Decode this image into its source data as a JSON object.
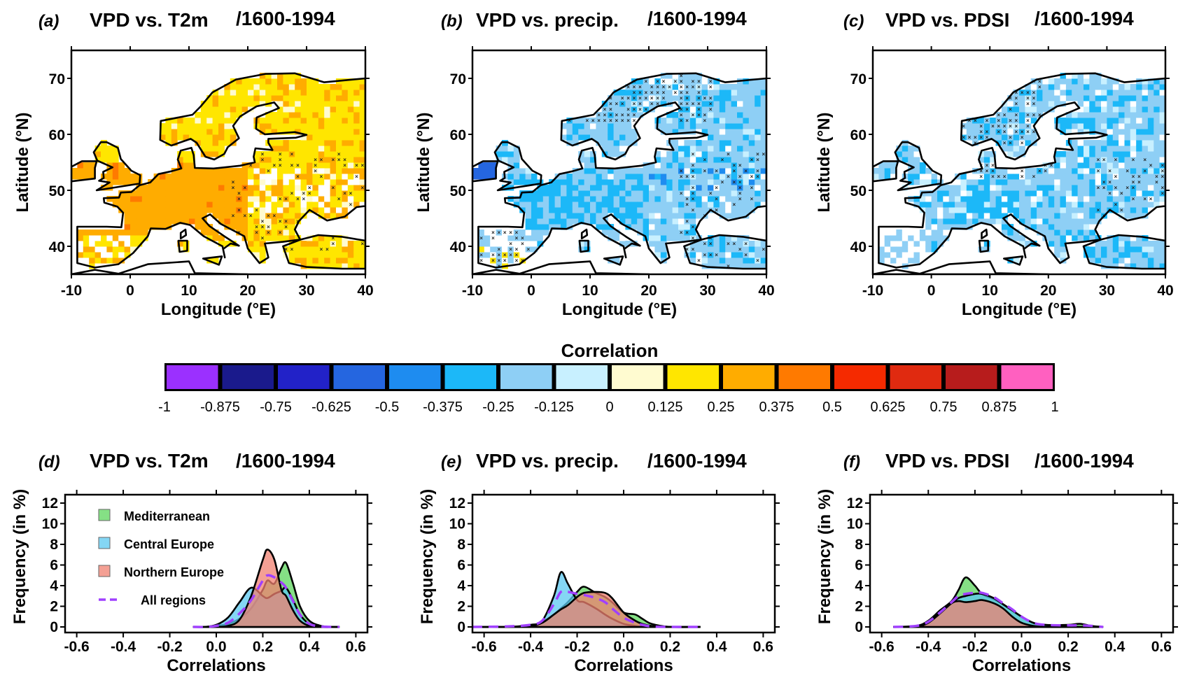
{
  "figure": {
    "colorbar": {
      "title": "Correlation",
      "ticks": [
        "-1",
        "-0.875",
        "-0.75",
        "-0.625",
        "-0.5",
        "-0.375",
        "-0.25",
        "-0.125",
        "0",
        "0.125",
        "0.25",
        "0.375",
        "0.5",
        "0.625",
        "0.75",
        "0.875",
        "1"
      ],
      "colors": [
        "#9b30ff",
        "#1a1a8c",
        "#2222c8",
        "#2566e0",
        "#1e8cf0",
        "#1cb8f8",
        "#8ecff5",
        "#c8f0ff",
        "#fffbd0",
        "#ffe600",
        "#ffac00",
        "#ff7a00",
        "#f52a00",
        "#e02a10",
        "#b71c1c",
        "#ff60c0"
      ]
    }
  },
  "chart_data": [
    {
      "type": "heatmap",
      "panel": "(a)",
      "title": "VPD vs. T2m",
      "period": "/1600-1994",
      "xlabel": "Longitude (°E)",
      "ylabel": "Latitude (°N)",
      "xlim": [
        -10,
        40
      ],
      "ylim": [
        35,
        75
      ],
      "xticks": [
        "-10",
        "0",
        "10",
        "20",
        "30",
        "40"
      ],
      "yticks": [
        "40",
        "50",
        "60",
        "70"
      ],
      "dominant_values": "positive 0.25–0.5 (yellow/orange); west and central Europe ~0.375, east ~0.25; hatched non-significant cells in eastern Europe"
    },
    {
      "type": "heatmap",
      "panel": "(b)",
      "title": "VPD vs. precip.",
      "period": "/1600-1994",
      "xlabel": "Longitude (°E)",
      "ylabel": "Latitude (°N)",
      "xlim": [
        -10,
        40
      ],
      "ylim": [
        35,
        75
      ],
      "xticks": [
        "-10",
        "0",
        "10",
        "20",
        "30",
        "40"
      ],
      "yticks": [
        "40",
        "50",
        "60",
        "70"
      ],
      "dominant_values": "negative -0.125 to -0.5 (blue); hatched cells in Scandinavia, Iberia and eastern Europe"
    },
    {
      "type": "heatmap",
      "panel": "(c)",
      "title": "VPD vs. PDSI",
      "period": "/1600-1994",
      "xlabel": "Longitude (°E)",
      "ylabel": "Latitude (°N)",
      "xlim": [
        -10,
        40
      ],
      "ylim": [
        35,
        75
      ],
      "xticks": [
        "-10",
        "0",
        "10",
        "20",
        "30",
        "40"
      ],
      "yticks": [
        "40",
        "50",
        "60",
        "70"
      ],
      "dominant_values": "negative -0.125 to -0.375 (blue); hatched cells in Scandinavia, central and eastern Europe"
    },
    {
      "type": "area",
      "panel": "(d)",
      "title": "VPD vs. T2m",
      "period": "/1600-1994",
      "xlabel": "Correlations",
      "ylabel": "Frequency (in %)",
      "xlim": [
        -0.65,
        0.65
      ],
      "ylim": [
        0,
        12
      ],
      "xticks": [
        "-0.6",
        "-0.4",
        "-0.2",
        "0.0",
        "0.2",
        "0.4",
        "0.6"
      ],
      "yticks": [
        "0",
        "2",
        "4",
        "6",
        "8",
        "10",
        "12"
      ],
      "legend": [
        "Mediterranean",
        "Central Europe",
        "Northern Europe",
        "All regions"
      ],
      "legend_position": "top-left",
      "x": [
        -0.1,
        -0.05,
        0.0,
        0.05,
        0.1,
        0.15,
        0.2,
        0.22,
        0.25,
        0.28,
        0.3,
        0.33,
        0.36,
        0.4,
        0.45,
        0.5,
        0.53
      ],
      "series": [
        {
          "name": "Mediterranean",
          "color": "#5cd65c",
          "values": [
            0,
            0,
            0.1,
            0.3,
            0.8,
            1.8,
            3.6,
            4.5,
            4.2,
            5.7,
            6.2,
            4.2,
            2.0,
            0.6,
            0.1,
            0,
            0
          ]
        },
        {
          "name": "Central Europe",
          "color": "#5bc8f0",
          "values": [
            0,
            0,
            0.2,
            0.9,
            2.4,
            3.8,
            3.0,
            2.8,
            3.2,
            3.5,
            3.8,
            2.6,
            1.2,
            0.3,
            0,
            0,
            0
          ]
        },
        {
          "name": "Northern Europe",
          "color": "#f08070",
          "values": [
            0,
            0,
            0,
            0.1,
            0.7,
            3.0,
            6.5,
            7.5,
            6.5,
            3.6,
            3.0,
            1.6,
            0.6,
            0.1,
            0,
            0,
            0
          ]
        },
        {
          "name": "All regions",
          "color": "#a040ff",
          "dashed": true,
          "values": [
            0,
            0,
            0.1,
            0.4,
            1.3,
            2.6,
            4.5,
            5.0,
            4.8,
            4.3,
            3.8,
            2.5,
            1.2,
            0.3,
            0.05,
            0,
            0
          ]
        }
      ]
    },
    {
      "type": "area",
      "panel": "(e)",
      "title": "VPD vs. precip.",
      "period": "/1600-1994",
      "xlabel": "Correlations",
      "ylabel": "Frequency (in %)",
      "xlim": [
        -0.65,
        0.65
      ],
      "ylim": [
        0,
        12
      ],
      "xticks": [
        "-0.6",
        "-0.4",
        "-0.2",
        "0.0",
        "0.2",
        "0.4",
        "0.6"
      ],
      "yticks": [
        "0",
        "2",
        "4",
        "6",
        "8",
        "10",
        "12"
      ],
      "x": [
        -0.65,
        -0.5,
        -0.4,
        -0.35,
        -0.3,
        -0.27,
        -0.24,
        -0.2,
        -0.17,
        -0.12,
        -0.08,
        -0.05,
        0.0,
        0.05,
        0.08,
        0.12,
        0.2,
        0.33
      ],
      "series": [
        {
          "name": "Mediterranean",
          "color": "#5cd65c",
          "values": [
            0,
            0,
            0.1,
            0.5,
            1.2,
            1.8,
            2.4,
            3.4,
            3.9,
            3.3,
            2.9,
            2.4,
            1.4,
            1.2,
            0.8,
            0.3,
            0,
            0
          ]
        },
        {
          "name": "Central Europe",
          "color": "#5bc8f0",
          "values": [
            0,
            0,
            0.2,
            0.6,
            3.0,
            5.3,
            4.2,
            2.6,
            2.4,
            1.8,
            1.2,
            0.8,
            0.3,
            0.1,
            0,
            0,
            0,
            0
          ]
        },
        {
          "name": "Northern Europe",
          "color": "#f08070",
          "values": [
            0,
            0,
            0.1,
            0.4,
            1.2,
            1.7,
            2.1,
            2.9,
            3.3,
            3.4,
            3.3,
            2.8,
            1.4,
            0.6,
            0.3,
            0.1,
            0,
            0
          ]
        },
        {
          "name": "All regions",
          "color": "#a040ff",
          "dashed": true,
          "values": [
            0,
            0.05,
            0.2,
            0.6,
            2.2,
            3.4,
            3.4,
            3.2,
            3.1,
            2.8,
            2.4,
            1.8,
            0.9,
            0.4,
            0.2,
            0.05,
            0,
            0
          ]
        }
      ]
    },
    {
      "type": "area",
      "panel": "(f)",
      "title": "VPD vs. PDSI",
      "period": "/1600-1994",
      "xlabel": "Correlations",
      "ylabel": "Frequency (in %)",
      "xlim": [
        -0.65,
        0.65
      ],
      "ylim": [
        0,
        12
      ],
      "xticks": [
        "-0.6",
        "-0.4",
        "-0.2",
        "0.0",
        "0.2",
        "0.4",
        "0.6"
      ],
      "yticks": [
        "0",
        "2",
        "4",
        "6",
        "8",
        "10",
        "12"
      ],
      "x": [
        -0.55,
        -0.45,
        -0.4,
        -0.35,
        -0.3,
        -0.27,
        -0.24,
        -0.2,
        -0.17,
        -0.12,
        -0.08,
        -0.04,
        0.0,
        0.05,
        0.1,
        0.2,
        0.25,
        0.3,
        0.35
      ],
      "series": [
        {
          "name": "Mediterranean",
          "color": "#5cd65c",
          "values": [
            0,
            0.1,
            0.6,
            1.6,
            2.5,
            3.6,
            4.8,
            4.0,
            3.2,
            2.7,
            2.2,
            1.6,
            1.0,
            0.4,
            0.2,
            0.2,
            0.3,
            0.1,
            0
          ]
        },
        {
          "name": "Central Europe",
          "color": "#5bc8f0",
          "values": [
            0,
            0.1,
            0.5,
            1.4,
            2.3,
            2.8,
            3.0,
            3.2,
            3.2,
            2.8,
            2.2,
            1.6,
            1.0,
            0.4,
            0.2,
            0.1,
            0,
            0,
            0
          ]
        },
        {
          "name": "Northern Europe",
          "color": "#f08070",
          "values": [
            0,
            0.05,
            0.4,
            1.3,
            2.3,
            2.5,
            2.4,
            2.5,
            2.6,
            2.3,
            1.8,
            1.0,
            0.4,
            0.1,
            0,
            0,
            0,
            0,
            0
          ]
        },
        {
          "name": "All regions",
          "color": "#a040ff",
          "dashed": true,
          "values": [
            0,
            0.1,
            0.5,
            1.4,
            2.4,
            3.0,
            3.2,
            3.3,
            3.3,
            2.9,
            2.3,
            1.7,
            1.0,
            0.4,
            0.2,
            0.15,
            0.15,
            0.1,
            0
          ]
        }
      ]
    }
  ]
}
